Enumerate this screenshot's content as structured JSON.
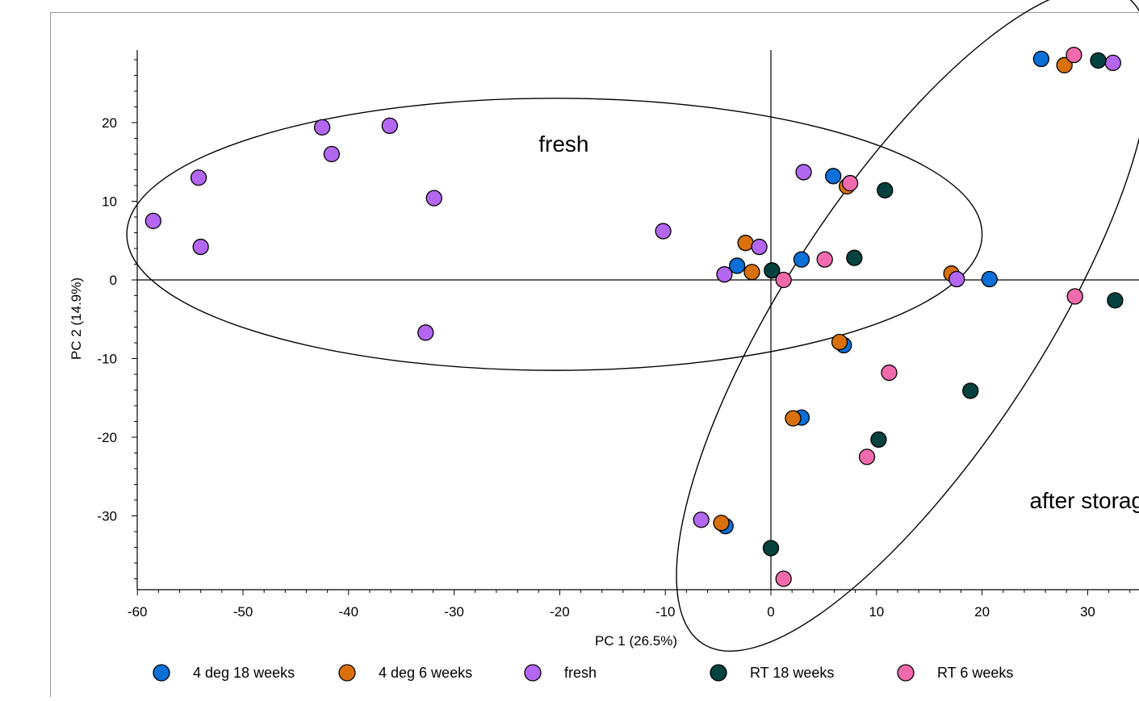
{
  "chart_data": {
    "type": "scatter",
    "xlabel": "PC 1 (26.5%)",
    "ylabel": "PC 2 (14.9%)",
    "xlim": [
      -60.5,
      34.5
    ],
    "ylim": [
      -39.5,
      29.5
    ],
    "xticks": [
      -60,
      -50,
      -40,
      -30,
      -20,
      -10,
      0,
      10,
      20,
      30
    ],
    "yticks": [
      -30,
      -20,
      -10,
      0,
      10,
      20
    ],
    "legend_position": "bottom",
    "series": [
      {
        "name": "4 deg 18 weeks",
        "color": "#0a6fd6",
        "points": [
          [
            25.6,
            28.1
          ],
          [
            5.9,
            13.2
          ],
          [
            2.9,
            2.6
          ],
          [
            -3.2,
            1.8
          ],
          [
            20.7,
            0.1
          ],
          [
            6.9,
            -8.3
          ],
          [
            2.9,
            -17.5
          ],
          [
            -4.3,
            -31.3
          ]
        ]
      },
      {
        "name": "4 deg 6 weeks",
        "color": "#d9700b",
        "points": [
          [
            27.8,
            27.3
          ],
          [
            7.2,
            11.9
          ],
          [
            -2.4,
            4.7
          ],
          [
            -1.8,
            1.0
          ],
          [
            17.1,
            0.8
          ],
          [
            6.5,
            -7.9
          ],
          [
            2.1,
            -17.6
          ],
          [
            -4.7,
            -30.9
          ]
        ]
      },
      {
        "name": "fresh",
        "color": "#b366f0",
        "points": [
          [
            32.4,
            27.6
          ],
          [
            -42.5,
            19.4
          ],
          [
            -36.1,
            19.6
          ],
          [
            -41.6,
            16.0
          ],
          [
            -54.2,
            13.0
          ],
          [
            3.1,
            13.7
          ],
          [
            -31.9,
            10.4
          ],
          [
            -58.5,
            7.5
          ],
          [
            -54.0,
            4.2
          ],
          [
            -10.2,
            6.2
          ],
          [
            -1.1,
            4.2
          ],
          [
            -4.4,
            0.7
          ],
          [
            17.6,
            0.1
          ],
          [
            -32.7,
            -6.7
          ],
          [
            -6.6,
            -30.5
          ]
        ]
      },
      {
        "name": "RT 18 weeks",
        "color": "#04423f",
        "points": [
          [
            31.0,
            27.9
          ],
          [
            10.8,
            11.4
          ],
          [
            7.9,
            2.8
          ],
          [
            0.1,
            1.2
          ],
          [
            32.6,
            -2.6
          ],
          [
            18.9,
            -14.1
          ],
          [
            10.2,
            -20.3
          ],
          [
            0.0,
            -34.1
          ]
        ]
      },
      {
        "name": "RT 6 weeks",
        "color": "#f06aac",
        "points": [
          [
            28.7,
            28.6
          ],
          [
            7.5,
            12.3
          ],
          [
            5.1,
            2.6
          ],
          [
            1.2,
            0.0
          ],
          [
            28.8,
            -2.1
          ],
          [
            11.2,
            -11.8
          ],
          [
            9.1,
            -22.5
          ],
          [
            1.2,
            -38.0
          ]
        ]
      }
    ],
    "ellipses": [
      {
        "label": "fresh",
        "center": [
          -20.5,
          5.8
        ],
        "semi_axes": [
          40.5,
          17.3
        ],
        "rotation_deg": 0
      },
      {
        "label": "after storage",
        "center": [
          13.5,
          -5.0
        ],
        "semi_axes": [
          42.0,
          14.0
        ],
        "rotation_deg": 57
      }
    ],
    "annotations": [
      {
        "text": "fresh",
        "at": [
          -22.0,
          16.3
        ]
      },
      {
        "text": "after storage",
        "at": [
          24.5,
          -29.0
        ]
      }
    ]
  }
}
